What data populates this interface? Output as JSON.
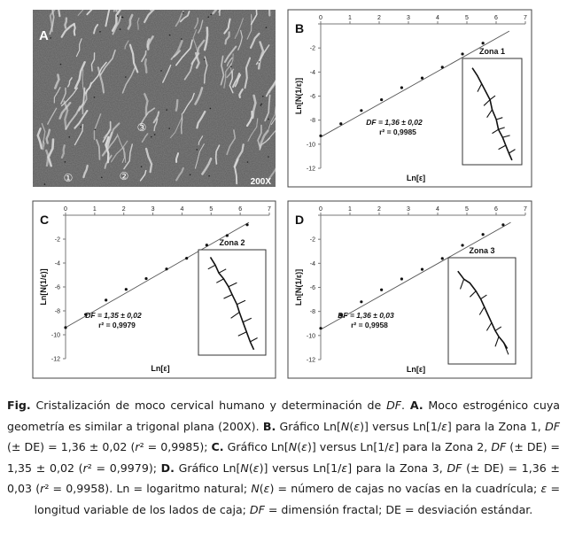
{
  "figure": {
    "micrograph": {
      "panel_label": "A",
      "magnification": "200X",
      "zone_markers": [
        "①",
        "②",
        "③"
      ]
    },
    "panels": [
      "B",
      "C",
      "D"
    ]
  },
  "chart_data": [
    {
      "panel": "B",
      "type": "scatter",
      "xlabel": "Ln[ε]",
      "ylabel": "Ln[N(1/ε)]",
      "xlim": [
        0,
        7
      ],
      "ylim": [
        -12,
        0
      ],
      "xticks": [
        0,
        1,
        2,
        3,
        4,
        5,
        6,
        7
      ],
      "yticks": [
        0,
        -2,
        -4,
        -6,
        -8,
        -10,
        -12
      ],
      "x": [
        0,
        0.69,
        1.39,
        2.08,
        2.77,
        3.47,
        4.16,
        4.85,
        5.55
      ],
      "y": [
        -9.3,
        -8.3,
        -7.2,
        -6.3,
        -5.3,
        -4.5,
        -3.6,
        -2.5,
        -1.6
      ],
      "fit_line": [
        [
          0,
          -9.4
        ],
        [
          6.45,
          -0.6
        ]
      ],
      "inset_title": "Zona 1",
      "annotation_df": "DF = 1,36 ± 0,02",
      "annotation_r2": "r² = 0,9985"
    },
    {
      "panel": "C",
      "type": "scatter",
      "xlabel": "Ln[ε]",
      "ylabel": "Ln[N(1/ε)]",
      "xlim": [
        0,
        7
      ],
      "ylim": [
        -12,
        0
      ],
      "xticks": [
        0,
        1,
        2,
        3,
        4,
        5,
        6,
        7
      ],
      "yticks": [
        0,
        -2,
        -4,
        -6,
        -8,
        -10,
        -12
      ],
      "x": [
        0,
        0.69,
        1.39,
        2.08,
        2.77,
        3.47,
        4.16,
        4.85,
        5.55,
        6.24
      ],
      "y": [
        -9.4,
        -8.3,
        -7.1,
        -6.2,
        -5.3,
        -4.5,
        -3.6,
        -2.5,
        -1.7,
        -0.8
      ],
      "fit_line": [
        [
          0,
          -9.4
        ],
        [
          6.3,
          -0.6
        ]
      ],
      "inset_title": "Zona 2",
      "annotation_df": "DF = 1,35 ± 0,02",
      "annotation_r2": "r² = 0,9979"
    },
    {
      "panel": "D",
      "type": "scatter",
      "xlabel": "Ln[ε]",
      "ylabel": "Ln[N(1/ε)]",
      "xlim": [
        0,
        7
      ],
      "ylim": [
        -12,
        0
      ],
      "xticks": [
        0,
        1,
        2,
        3,
        4,
        5,
        6,
        7
      ],
      "yticks": [
        0,
        -2,
        -4,
        -6,
        -8,
        -10,
        -12
      ],
      "x": [
        0,
        0.69,
        1.39,
        2.08,
        2.77,
        3.47,
        4.16,
        4.85,
        5.55,
        6.24
      ],
      "y": [
        -9.4,
        -8.3,
        -7.2,
        -6.2,
        -5.3,
        -4.5,
        -3.6,
        -2.5,
        -1.6,
        -0.8
      ],
      "fit_line": [
        [
          0,
          -9.5
        ],
        [
          6.5,
          -0.6
        ]
      ],
      "inset_title": "Zona 3",
      "annotation_df": "DF = 1,36 ± 0,03",
      "annotation_r2": "r² = 0,9958"
    }
  ],
  "caption": {
    "label": "Fig.",
    "segments": [
      {
        "t": " Cristalización de moco cervical humano y determinación de "
      },
      {
        "t": "DF",
        "i": true
      },
      {
        "t": ". "
      },
      {
        "t": "A.",
        "b": true
      },
      {
        "t": " Moco estrogénico cuya geometría es similar a trigonal plana (200X). "
      },
      {
        "t": "B.",
        "b": true
      },
      {
        "t": " Gráfico Ln["
      },
      {
        "t": "N",
        "i": true
      },
      {
        "t": "("
      },
      {
        "t": "ε",
        "i": true
      },
      {
        "t": ")] versus Ln[1/"
      },
      {
        "t": "ε",
        "i": true
      },
      {
        "t": "] para la Zona 1, "
      },
      {
        "t": "DF",
        "i": true
      },
      {
        "t": " (± DE) = 1,36 ± 0,02 ("
      },
      {
        "t": "r",
        "i": true
      },
      {
        "t": "² = 0,9985); "
      },
      {
        "t": "C.",
        "b": true
      },
      {
        "t": " Gráfico Ln["
      },
      {
        "t": "N",
        "i": true
      },
      {
        "t": "("
      },
      {
        "t": "ε",
        "i": true
      },
      {
        "t": ")] versus Ln[1/"
      },
      {
        "t": "ε",
        "i": true
      },
      {
        "t": "] para la Zona 2, "
      },
      {
        "t": "DF",
        "i": true
      },
      {
        "t": " (± DE) = 1,35 ± 0,02 ("
      },
      {
        "t": "r",
        "i": true
      },
      {
        "t": "² = 0,9979); "
      },
      {
        "t": "D.",
        "b": true
      },
      {
        "t": " Gráfico Ln["
      },
      {
        "t": "N",
        "i": true
      },
      {
        "t": "("
      },
      {
        "t": "ε",
        "i": true
      },
      {
        "t": ")] versus Ln[1/"
      },
      {
        "t": "ε",
        "i": true
      },
      {
        "t": "] para la Zona 3, "
      },
      {
        "t": "DF",
        "i": true
      },
      {
        "t": " (± DE) = 1,36 ± 0,03 ("
      },
      {
        "t": "r",
        "i": true
      },
      {
        "t": "² = 0,9958). Ln = logaritmo natural; "
      },
      {
        "t": "N",
        "i": true
      },
      {
        "t": "("
      },
      {
        "t": "ε",
        "i": true
      },
      {
        "t": ") = número de cajas no vacías en la cuadrícula; "
      },
      {
        "t": "ε",
        "i": true
      },
      {
        "t": " = longitud variable de los lados de caja; "
      },
      {
        "t": "DF",
        "i": true
      },
      {
        "t": " = dimensión fractal; DE = desviación estándar."
      }
    ]
  }
}
